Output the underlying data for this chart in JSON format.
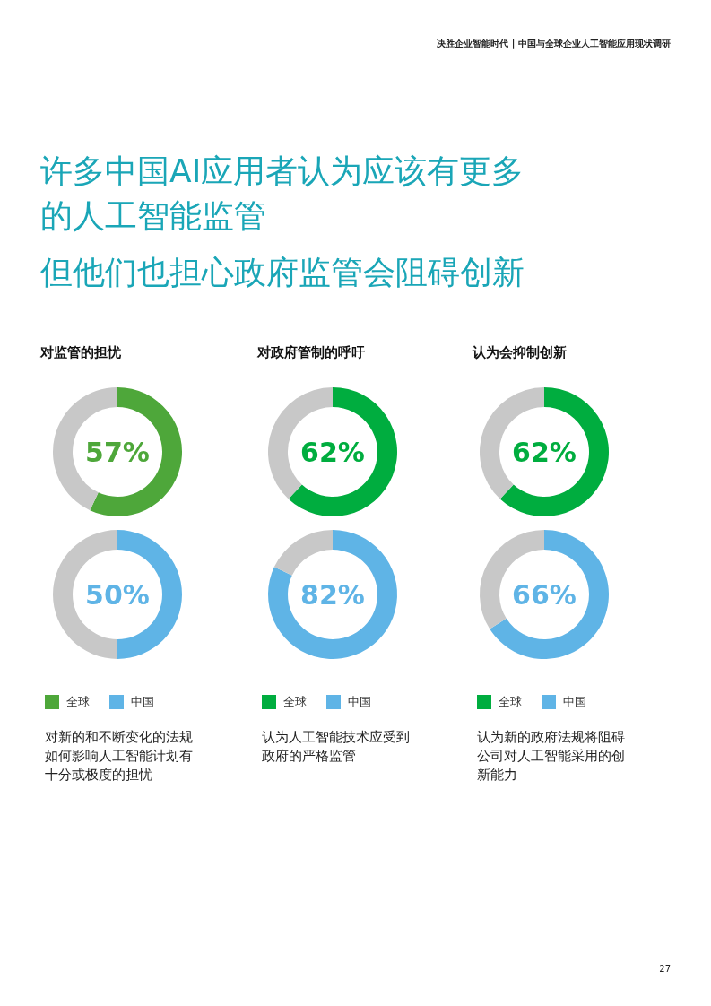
{
  "chart_data": [
    {
      "type": "donut",
      "title": "对监管的担忧",
      "categories": [
        null,
        null
      ],
      "legend": "bottom",
      "series": [
        {
          "name": "全球",
          "color": "#4ea73a",
          "colors": [
            "#4ea73a",
            "#c8c8c8"
          ],
          "values": [
            57,
            43
          ],
          "value_labels": [
            "57%",
            null
          ]
        },
        {
          "name": "中国",
          "color": "#5fb4e6",
          "colors": [
            "#5fb4e6",
            "#c8c8c8"
          ],
          "values": [
            50,
            50
          ],
          "value_labels": [
            "50%",
            null
          ]
        }
      ],
      "annotations": [
        "决胜企业智能时代 | 中国与全球企业人工智能应用现状调研",
        "许多中国AI应用者认为应该有更多的人工智能监管",
        "但他们也担心政府监管会阻碍创新",
        "27",
        "对新的和不断变化的法规如何影响人工智能计划有十分或极度的担忧"
      ]
    },
    {
      "type": "donut",
      "title": "对政府管制的呼吁",
      "categories": [
        null,
        null
      ],
      "legend": "bottom",
      "series": [
        {
          "name": "全球",
          "color": "#00ad3f",
          "colors": [
            "#00ad3f",
            "#c8c8c8"
          ],
          "values": [
            62,
            38
          ],
          "value_labels": [
            "62%",
            null
          ]
        },
        {
          "name": "中国",
          "color": "#5fb4e6",
          "colors": [
            "#5fb4e6",
            "#c8c8c8"
          ],
          "values": [
            82,
            18
          ],
          "value_labels": [
            "82%",
            null
          ]
        }
      ],
      "annotations": [
        "认为人工智能技术应受到政府的严格监管"
      ]
    },
    {
      "type": "donut",
      "title": "认为会抑制创新",
      "categories": [
        null,
        null
      ],
      "legend": "bottom",
      "series": [
        {
          "name": "全球",
          "color": "#00ad3f",
          "colors": [
            "#00ad3f",
            "#c8c8c8"
          ],
          "values": [
            62,
            38
          ],
          "value_labels": [
            "62%",
            null
          ]
        },
        {
          "name": "中国",
          "color": "#5fb4e6",
          "colors": [
            "#5fb4e6",
            "#c8c8c8"
          ],
          "values": [
            66,
            34
          ],
          "value_labels": [
            "66%",
            null
          ]
        }
      ],
      "annotations": [
        "认为新的政府法规将阻碍公司对人工智能采用的创新能力"
      ]
    }
  ]
}
